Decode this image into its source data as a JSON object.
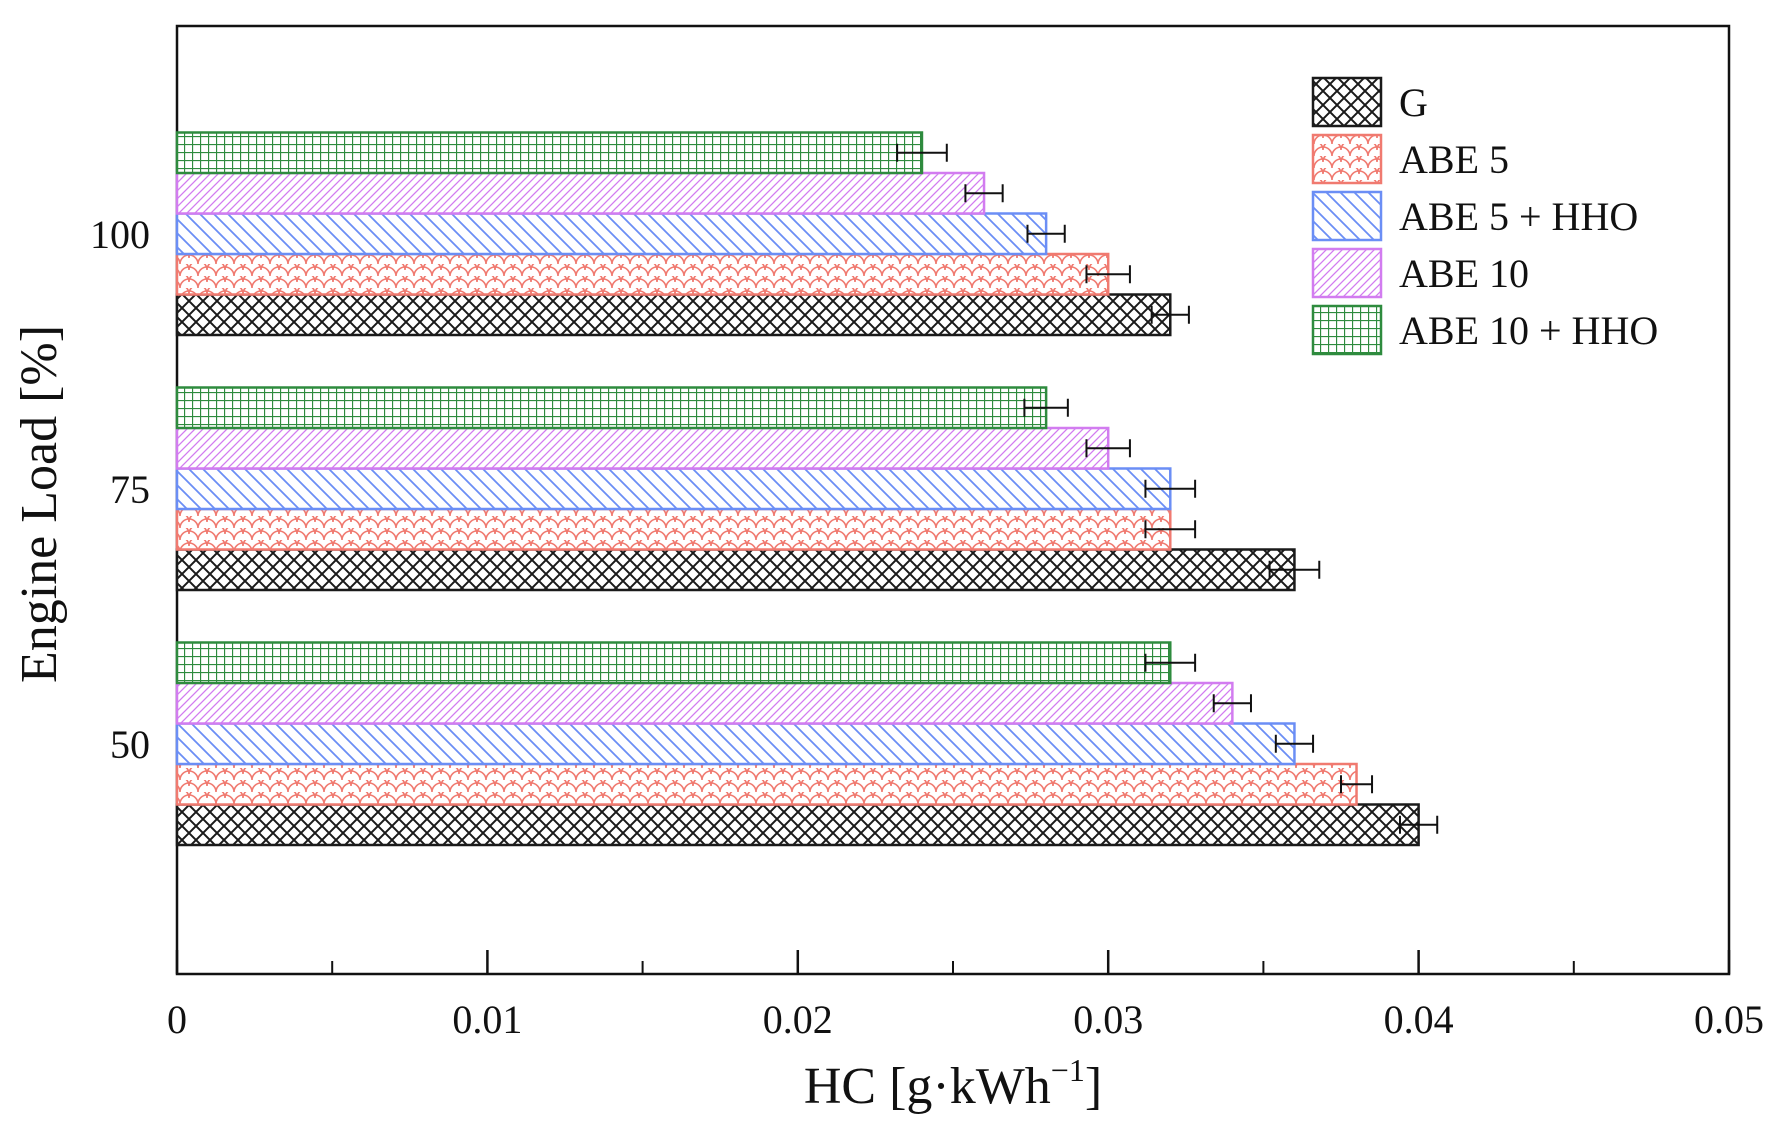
{
  "chart_data": {
    "type": "bar",
    "orientation": "horizontal",
    "title": "",
    "xlabel": "HC [g·kWh",
    "xlabel_sup": "−1",
    "xlabel_end": "]",
    "ylabel": "Engine Load [%]",
    "xlim": [
      0,
      0.05
    ],
    "xticks": [
      0,
      0.01,
      0.02,
      0.03,
      0.04,
      0.05
    ],
    "xtick_labels": [
      "0",
      "0.01",
      "0.02",
      "0.03",
      "0.04",
      "0.05"
    ],
    "categories": [
      "50",
      "75",
      "100"
    ],
    "legend_position": "top-right",
    "series": [
      {
        "name": "G",
        "color": "#1a1a1a",
        "pattern": "crosshatch",
        "values": [
          0.04,
          0.036,
          0.032
        ],
        "errors": [
          0.0006,
          0.0008,
          0.0006
        ]
      },
      {
        "name": "ABE 5",
        "color": "#f07a70",
        "pattern": "scales",
        "values": [
          0.038,
          0.032,
          0.03
        ],
        "errors": [
          0.0005,
          0.0008,
          0.0007
        ]
      },
      {
        "name": "ABE 5 + HHO",
        "color": "#6b8ef5",
        "pattern": "diagonal-back",
        "values": [
          0.036,
          0.032,
          0.028
        ],
        "errors": [
          0.0006,
          0.0008,
          0.0006
        ]
      },
      {
        "name": "ABE 10",
        "color": "#d27cf0",
        "pattern": "diagonal-fwd",
        "values": [
          0.034,
          0.03,
          0.026
        ],
        "errors": [
          0.0006,
          0.0007,
          0.0006
        ]
      },
      {
        "name": "ABE 10 + HHO",
        "color": "#2e8b3e",
        "pattern": "grid",
        "values": [
          0.032,
          0.028,
          0.024
        ],
        "errors": [
          0.0008,
          0.0007,
          0.0008
        ]
      }
    ]
  }
}
